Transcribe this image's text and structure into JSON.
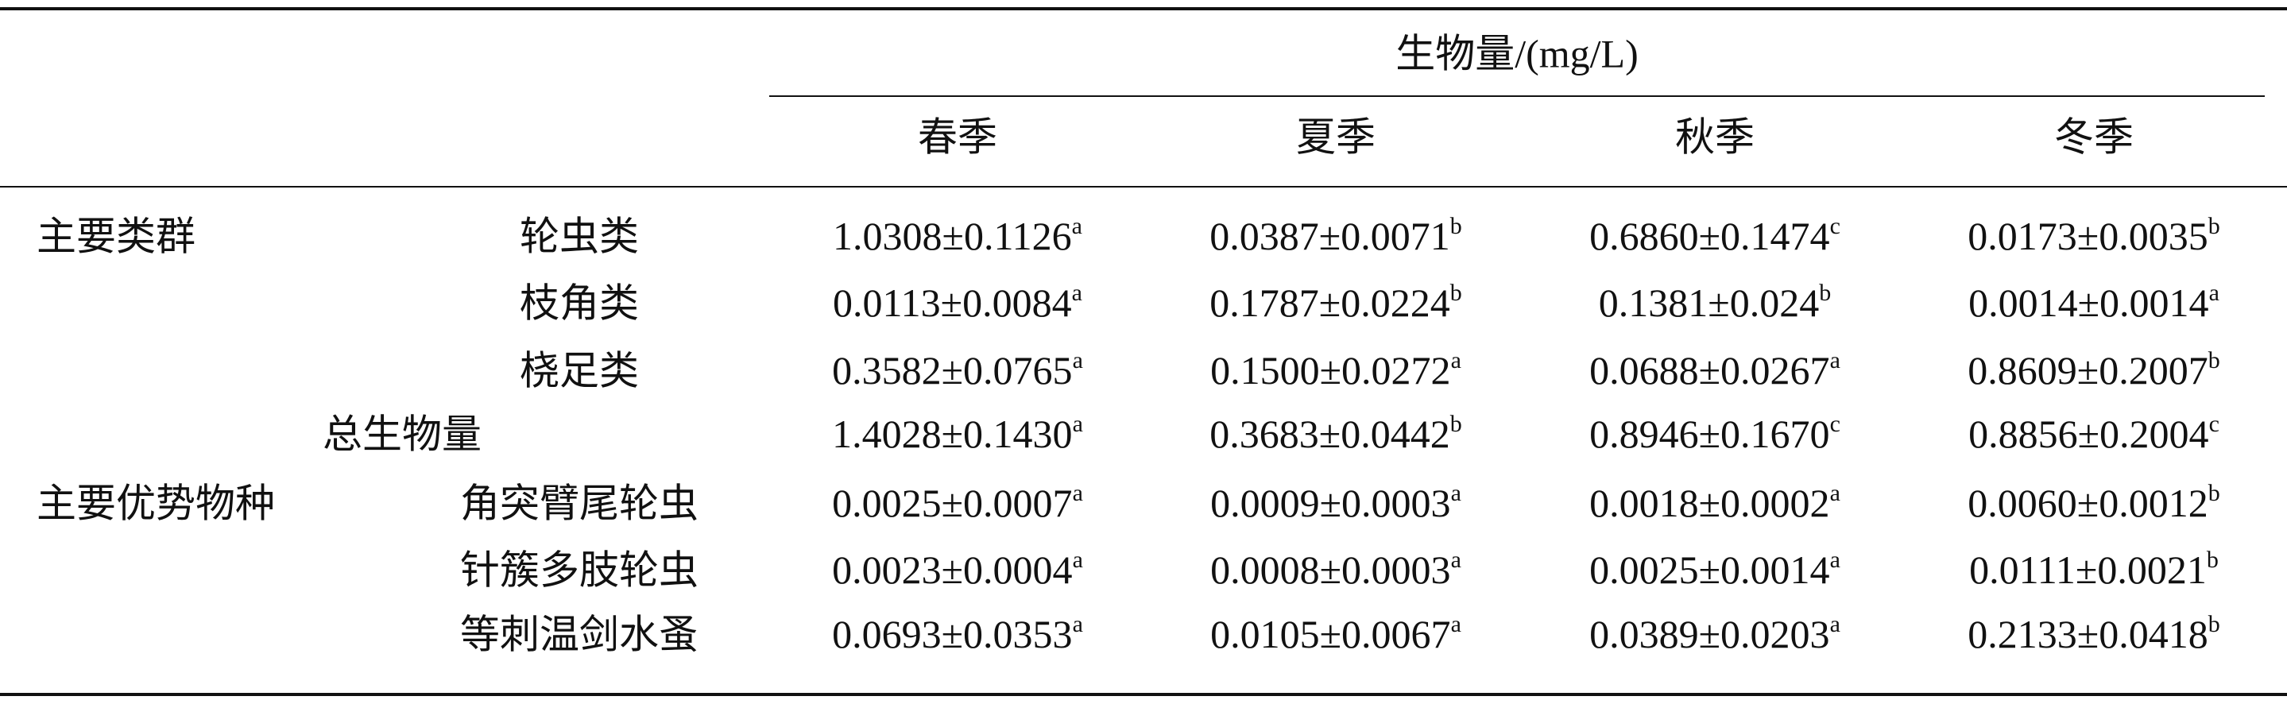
{
  "table": {
    "group_title": "生物量/(mg/L)",
    "seasons": [
      "春季",
      "夏季",
      "秋季",
      "冬季"
    ],
    "rows": [
      {
        "group": "主要类群",
        "label": "轮虫类",
        "cells": [
          {
            "text": "1.0308±0.1126",
            "sup": "a"
          },
          {
            "text": "0.0387±0.0071",
            "sup": "b"
          },
          {
            "text": "0.6860±0.1474",
            "sup": "c"
          },
          {
            "text": "0.0173±0.0035",
            "sup": "b"
          }
        ]
      },
      {
        "label": "枝角类",
        "cells": [
          {
            "text": "0.0113±0.0084",
            "sup": "a"
          },
          {
            "text": "0.1787±0.0224",
            "sup": "b"
          },
          {
            "text": "0.1381±0.024",
            "sup": "b"
          },
          {
            "text": "0.0014±0.0014",
            "sup": "a"
          }
        ]
      },
      {
        "label": "桡足类",
        "cells": [
          {
            "text": "0.3582±0.0765",
            "sup": "a"
          },
          {
            "text": "0.1500±0.0272",
            "sup": "a"
          },
          {
            "text": "0.0688±0.0267",
            "sup": "a"
          },
          {
            "text": "0.8609±0.2007",
            "sup": "b"
          }
        ]
      },
      {
        "total": "总生物量",
        "cells": [
          {
            "text": "1.4028±0.1430",
            "sup": "a"
          },
          {
            "text": "0.3683±0.0442",
            "sup": "b"
          },
          {
            "text": "0.8946±0.1670",
            "sup": "c"
          },
          {
            "text": "0.8856±0.2004",
            "sup": "c"
          }
        ]
      },
      {
        "group": "主要优势物种",
        "label": "角突臂尾轮虫",
        "cells": [
          {
            "text": "0.0025±0.0007",
            "sup": "a"
          },
          {
            "text": "0.0009±0.0003",
            "sup": "a"
          },
          {
            "text": "0.0018±0.0002",
            "sup": "a"
          },
          {
            "text": "0.0060±0.0012",
            "sup": "b"
          }
        ]
      },
      {
        "label": "针簇多肢轮虫",
        "cells": [
          {
            "text": "0.0023±0.0004",
            "sup": "a"
          },
          {
            "text": "0.0008±0.0003",
            "sup": "a"
          },
          {
            "text": "0.0025±0.0014",
            "sup": "a"
          },
          {
            "text": "0.0111±0.0021",
            "sup": "b"
          }
        ]
      },
      {
        "label": "等刺温剑水蚤",
        "cells": [
          {
            "text": "0.0693±0.0353",
            "sup": "a"
          },
          {
            "text": "0.0105±0.0067",
            "sup": "a"
          },
          {
            "text": "0.0389±0.0203",
            "sup": "a"
          },
          {
            "text": "0.2133±0.0418",
            "sup": "b"
          }
        ]
      }
    ]
  }
}
